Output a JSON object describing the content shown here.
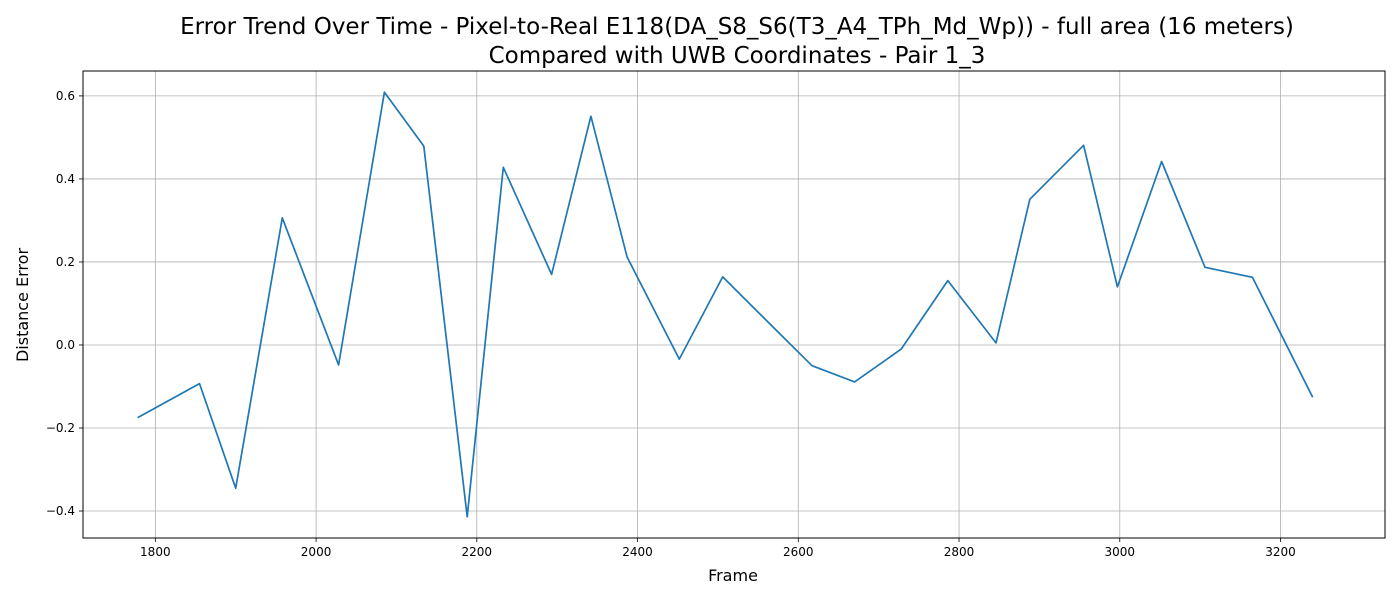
{
  "chart_data": {
    "type": "line",
    "title": "Error Trend Over Time - Pixel-to-Real E118(DA_S8_S6(T3_A4_TPh_Md_Wp)) - full area (16 meters)",
    "subtitle": "Compared with UWB Coordinates - Pair 1_3",
    "xlabel": "Frame",
    "ylabel": "Distance Error",
    "xlim": [
      1710,
      3330
    ],
    "ylim": [
      -0.465,
      0.66
    ],
    "xticks": [
      1800,
      2000,
      2200,
      2400,
      2600,
      2800,
      3000,
      3200
    ],
    "yticks": [
      -0.4,
      -0.2,
      0.0,
      0.2,
      0.4,
      0.6
    ],
    "xtick_labels": [
      "1800",
      "2000",
      "2200",
      "2400",
      "2600",
      "2800",
      "3000",
      "3200"
    ],
    "ytick_labels": [
      "−0.4",
      "−0.2",
      "0.0",
      "0.2",
      "0.4",
      "0.6"
    ],
    "grid": true,
    "series": [
      {
        "color": "#1f77b4",
        "x": [
          1778,
          1855,
          1900,
          1958,
          2028,
          2085,
          2134,
          2188,
          2233,
          2293,
          2342,
          2387,
          2452,
          2506,
          2560,
          2617,
          2670,
          2728,
          2786,
          2846,
          2888,
          2955,
          2997,
          3052,
          3106,
          3165,
          3240
        ],
        "y": [
          -0.175,
          -0.093,
          -0.345,
          0.306,
          -0.048,
          0.609,
          0.479,
          -0.414,
          0.428,
          0.17,
          0.551,
          0.212,
          -0.034,
          0.164,
          0.06,
          -0.05,
          -0.089,
          -0.01,
          0.155,
          0.005,
          0.351,
          0.481,
          0.14,
          0.442,
          0.187,
          0.163,
          -0.126
        ]
      }
    ]
  }
}
